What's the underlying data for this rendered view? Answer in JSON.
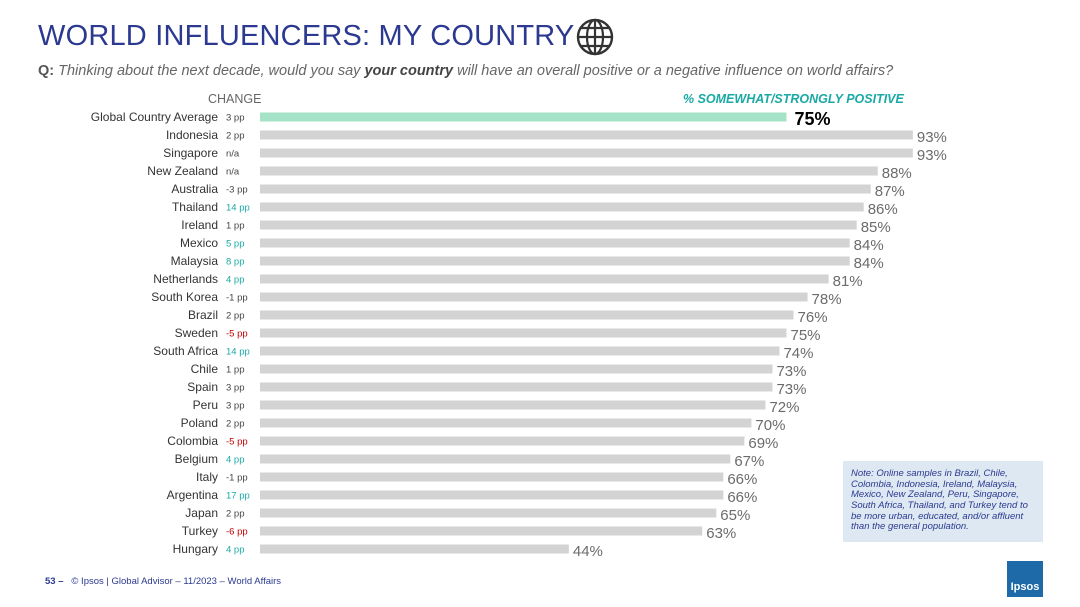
{
  "header": {
    "title": "WORLD INFLUENCERS: MY COUNTRY",
    "question_prefix": "Q:",
    "question_part1": " Thinking about the next decade, would you say ",
    "question_bold": "your country",
    "question_part2": " will have an overall positive or a negative influence on world affairs?"
  },
  "chart_data": {
    "type": "bar",
    "orientation": "horizontal",
    "change_header": "CHANGE",
    "series_header": "% SOMEWHAT/STRONGLY POSITIVE",
    "categories": [
      "Global Country Average",
      "Indonesia",
      "Singapore",
      "New Zealand",
      "Australia",
      "Thailand",
      "Ireland",
      "Mexico",
      "Malaysia",
      "Netherlands",
      "South Korea",
      "Brazil",
      "Sweden",
      "South Africa",
      "Chile",
      "Spain",
      "Peru",
      "Poland",
      "Colombia",
      "Belgium",
      "Italy",
      "Argentina",
      "Japan",
      "Turkey",
      "Hungary"
    ],
    "values": [
      75,
      93,
      93,
      88,
      87,
      86,
      85,
      84,
      84,
      81,
      78,
      76,
      75,
      74,
      73,
      73,
      72,
      70,
      69,
      67,
      66,
      66,
      65,
      63,
      44
    ],
    "value_labels": [
      "75%",
      "93%",
      "93%",
      "88%",
      "87%",
      "86%",
      "85%",
      "84%",
      "84%",
      "81%",
      "78%",
      "76%",
      "75%",
      "74%",
      "73%",
      "73%",
      "72%",
      "70%",
      "69%",
      "67%",
      "66%",
      "66%",
      "65%",
      "63%",
      "44%"
    ],
    "changes": [
      "3 pp",
      "2 pp",
      "n/a",
      "n/a",
      "-3 pp",
      "14 pp",
      "1 pp",
      "5 pp",
      "8 pp",
      "4 pp",
      "-1 pp",
      "2 pp",
      "-5 pp",
      "14 pp",
      "1 pp",
      "3 pp",
      "3 pp",
      "2 pp",
      "-5 pp",
      "4 pp",
      "-1 pp",
      "17 pp",
      "2 pp",
      "-6 pp",
      "4 pp"
    ],
    "xlim": [
      0,
      100
    ],
    "highlight_index": 0
  },
  "colors": {
    "title": "#2b3990",
    "bar": "#d3d3d3",
    "highlight_bar": "#a5e3c6",
    "value_label": "#6b6b6b",
    "change_up": "#1aa9a4",
    "change_down": "#c00000",
    "change_neutral": "#444444"
  },
  "note": "Note: Online samples in Brazil, Chile, Colombia, Indonesia, Ireland, Malaysia, Mexico, New Zealand, Peru, Singapore, South Africa, Thailand, and Turkey tend to be more urban, educated, and/or affluent than the general population.",
  "footer": {
    "page": "53 –",
    "text": "© Ipsos | Global Advisor – 11/2023 – World Affairs"
  },
  "logo": {
    "text": "Ipsos"
  },
  "icons": {
    "title_icon": "globe-icon"
  }
}
